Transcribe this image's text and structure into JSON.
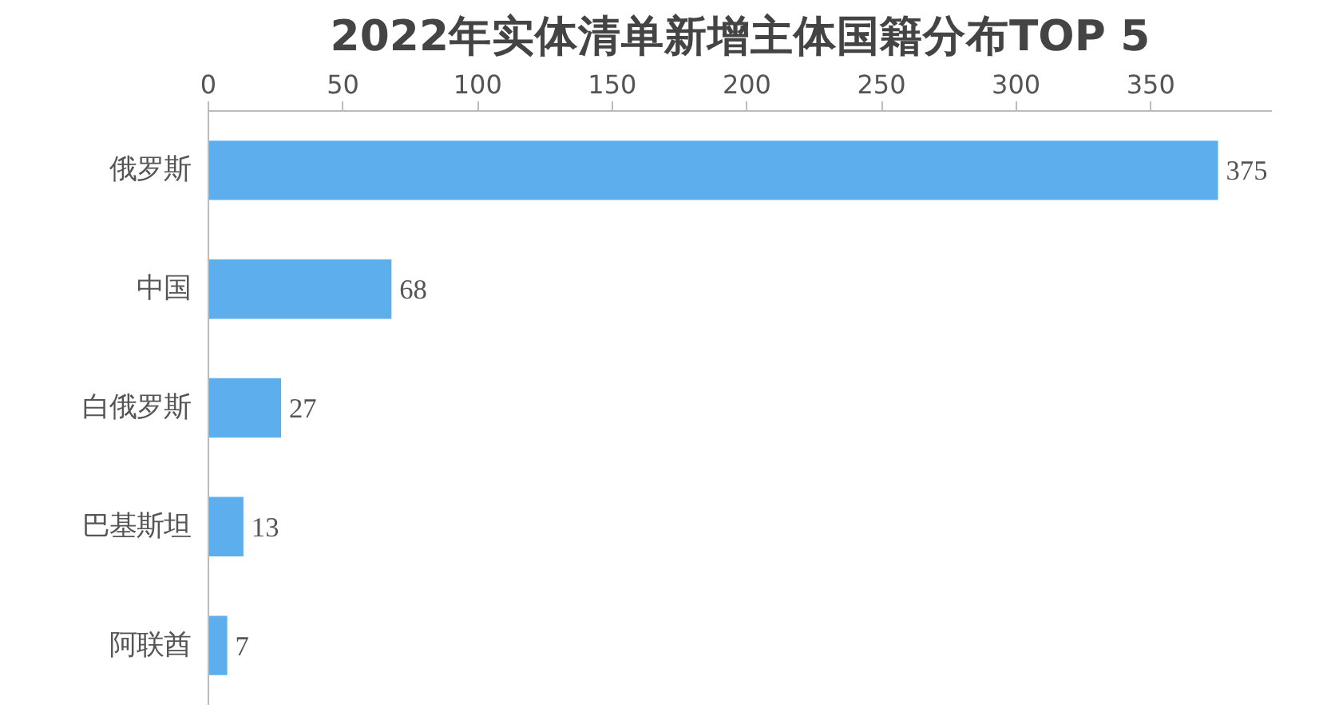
{
  "chart_data": {
    "type": "bar",
    "orientation": "horizontal",
    "title": "2022年实体清单新增主体国籍分布TOP 5",
    "categories": [
      "俄罗斯",
      "中国",
      "白俄罗斯",
      "巴基斯坦",
      "阿联酋"
    ],
    "values": [
      375,
      68,
      27,
      13,
      7
    ],
    "color": "#5caeed",
    "xlim": [
      0,
      395
    ],
    "xticks": [
      0,
      50,
      100,
      150,
      200,
      250,
      300,
      350
    ],
    "grid": false,
    "data_labels": true
  }
}
